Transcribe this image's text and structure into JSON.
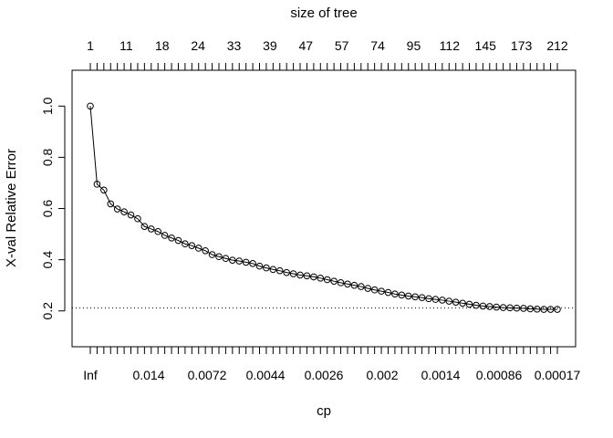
{
  "chart_data": {
    "type": "line",
    "top_axis_title": "size of tree",
    "top_tick_labels": [
      "1",
      "11",
      "18",
      "24",
      "33",
      "39",
      "47",
      "57",
      "74",
      "95",
      "112",
      "145",
      "173",
      "212"
    ],
    "xlabel": "cp",
    "bottom_tick_labels": [
      "Inf",
      "0.014",
      "0.0072",
      "0.0044",
      "0.0026",
      "0.002",
      "0.0014",
      "0.00086",
      "0.00017"
    ],
    "ylabel": "X-val Relative Error",
    "ylim": [
      0.06,
      1.14
    ],
    "y_ticks": [
      0.2,
      0.4,
      0.6,
      0.8,
      1.0
    ],
    "y_tick_labels": [
      "0.2",
      "0.4",
      "0.6",
      "0.8",
      "1.0"
    ],
    "x_index_range": [
      1,
      70
    ],
    "reference_line_y": 0.212,
    "series": [
      {
        "values": [
          1.0,
          0.695,
          0.672,
          0.618,
          0.598,
          0.587,
          0.575,
          0.56,
          0.53,
          0.52,
          0.51,
          0.495,
          0.485,
          0.475,
          0.462,
          0.455,
          0.445,
          0.435,
          0.42,
          0.412,
          0.405,
          0.398,
          0.395,
          0.39,
          0.385,
          0.375,
          0.368,
          0.362,
          0.357,
          0.35,
          0.345,
          0.34,
          0.337,
          0.333,
          0.328,
          0.322,
          0.316,
          0.31,
          0.305,
          0.3,
          0.295,
          0.288,
          0.282,
          0.277,
          0.272,
          0.266,
          0.262,
          0.258,
          0.255,
          0.252,
          0.248,
          0.245,
          0.242,
          0.238,
          0.234,
          0.23,
          0.226,
          0.222,
          0.219,
          0.217,
          0.215,
          0.213,
          0.212,
          0.211,
          0.21,
          0.208,
          0.207,
          0.206,
          0.206,
          0.206
        ]
      }
    ]
  }
}
